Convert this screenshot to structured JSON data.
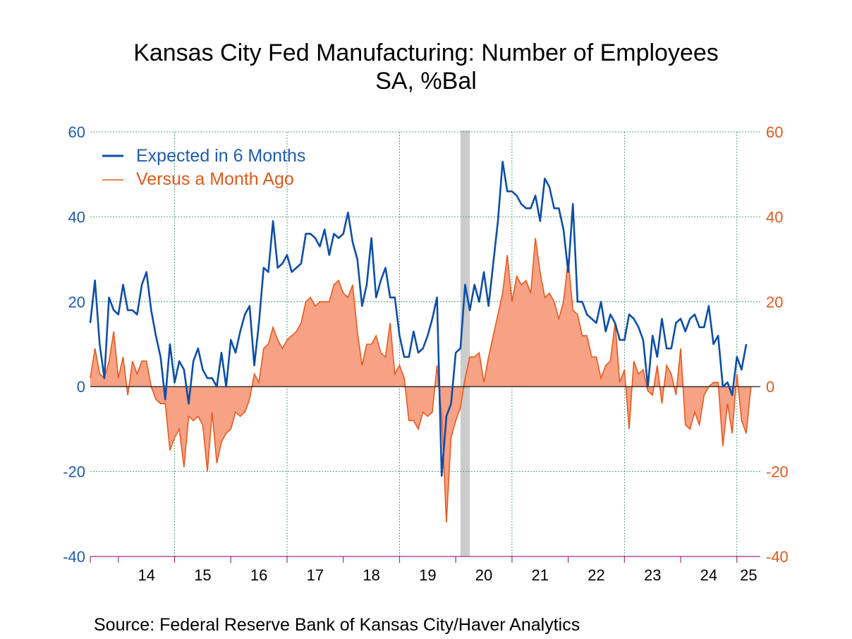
{
  "chart_data": {
    "type": "line",
    "title": "Kansas City Fed Manufacturing: Number of Employees",
    "subtitle": "SA, %Bal",
    "source": "Source:  Federal Reserve Bank of Kansas City/Haver Analytics",
    "ylim": [
      -40,
      60
    ],
    "yticks": [
      "60",
      "40",
      "20",
      "0",
      "-20",
      "-40"
    ],
    "ytick_values": [
      60,
      40,
      20,
      0,
      -20,
      -40
    ],
    "xtick_labels": [
      "14",
      "15",
      "16",
      "17",
      "18",
      "19",
      "20",
      "21",
      "22",
      "23",
      "24",
      "25"
    ],
    "x_range": [
      "2013-07",
      "2025-06"
    ],
    "recession_shading": {
      "start": "2020-02",
      "end": "2020-04"
    },
    "grid": true,
    "legend_position": "top-left",
    "colors": {
      "expected": "#0d4ea8",
      "versus": "#e85a1e",
      "versus_fill": "#f7a185",
      "axis_left": "#1f5cb0",
      "axis_right": "#e05a1c",
      "grid": "#2e8b57",
      "recession": "#cccccc"
    },
    "series": [
      {
        "name": "Expected in 6 Months",
        "start": "2013-07",
        "values": [
          15,
          25,
          10,
          2,
          21,
          18,
          17,
          24,
          18,
          18,
          17,
          24,
          27,
          18,
          12,
          7,
          -3,
          10,
          1,
          6,
          4,
          -4,
          6,
          9,
          4,
          2,
          2,
          0,
          8,
          0,
          11,
          8,
          13,
          17,
          19,
          5,
          15,
          28,
          27,
          39,
          28,
          29,
          31,
          27,
          28,
          29,
          36,
          36,
          35,
          33,
          37,
          31,
          36,
          35,
          36,
          41,
          34,
          30,
          19,
          24,
          35,
          21,
          25,
          28,
          21,
          21,
          12,
          7,
          7,
          13,
          8,
          9,
          12,
          16,
          21,
          -21,
          -7,
          -4,
          8,
          9,
          24,
          18,
          24,
          20,
          27,
          19,
          29,
          39,
          53,
          46,
          46,
          45,
          43,
          42,
          42,
          45,
          39,
          49,
          47,
          42,
          42,
          37,
          27,
          43,
          20,
          20,
          17,
          16,
          15,
          20,
          13,
          17,
          15,
          11,
          11,
          17,
          16,
          14,
          11,
          0,
          12,
          7,
          16,
          9,
          9,
          15,
          16,
          13,
          16,
          17,
          14,
          14,
          19,
          10,
          12,
          0,
          1,
          -2,
          7,
          4,
          10
        ]
      },
      {
        "name": "Versus a Month Ago",
        "start": "2013-07",
        "values": [
          2,
          9,
          3,
          2,
          6,
          13,
          2,
          7,
          -2,
          6,
          3,
          6,
          6,
          0,
          -3,
          -4,
          -4,
          -15,
          -12,
          -10,
          -19,
          -7,
          -8,
          -7,
          -9,
          -20,
          -6,
          -18,
          -13,
          -11,
          -10,
          -6,
          -7,
          -6,
          -3,
          3,
          1,
          9,
          10,
          14,
          11,
          9,
          11,
          12,
          13,
          15,
          20,
          21,
          19,
          20,
          20,
          20,
          24,
          25,
          22,
          21,
          24,
          13,
          5,
          10,
          10,
          12,
          8,
          7,
          15,
          3,
          5,
          2,
          -8,
          -8,
          -10,
          -6,
          -7,
          -6,
          5,
          -7,
          -32,
          -12,
          -8,
          -5,
          2,
          7,
          7,
          8,
          1,
          7,
          12,
          17,
          22,
          31,
          20,
          26,
          24,
          25,
          22,
          35,
          27,
          21,
          22,
          20,
          16,
          20,
          30,
          18,
          17,
          12,
          12,
          7,
          7,
          2,
          5,
          6,
          15,
          1,
          4,
          -10,
          6,
          3,
          4,
          -1,
          -2,
          5,
          -4,
          5,
          3,
          -2,
          9,
          -9,
          -10,
          -6,
          -9,
          -2,
          0,
          1,
          1,
          -14,
          -4,
          -11,
          3,
          -8,
          -11,
          0
        ]
      }
    ]
  }
}
